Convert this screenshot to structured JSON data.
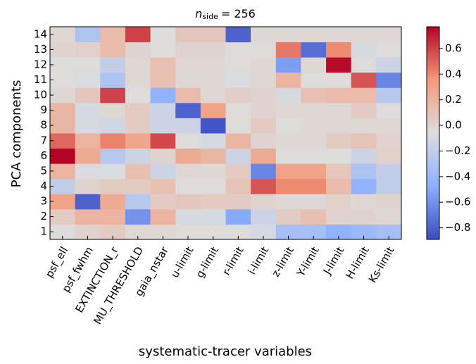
{
  "chart_data": {
    "type": "heatmap",
    "title": {
      "symbol": "n",
      "subscript": "side",
      "value": "= 256"
    },
    "x_label": "systematic-tracer variables",
    "y_label": "PCA components",
    "x_categories": [
      "psf_ell",
      "psf_fwhm",
      "EXTINCTION_r",
      "MU_THRESHOLD",
      "gaia_nstar",
      "u-limit",
      "g-limit",
      "r-limit",
      "i-limit",
      "z-limit",
      "Y-limit",
      "J-limit",
      "H-limit",
      "Ks-limit"
    ],
    "y_categories": [
      "1",
      "2",
      "3",
      "4",
      "5",
      "6",
      "7",
      "8",
      "9",
      "10",
      "11",
      "12",
      "13",
      "14"
    ],
    "z": [
      [
        -0.05,
        0.0,
        0.05,
        -0.02,
        -0.02,
        -0.05,
        -0.05,
        -0.05,
        -0.1,
        -0.35,
        -0.35,
        -0.45,
        -0.4,
        -0.35
      ],
      [
        0.05,
        0.2,
        0.2,
        -0.6,
        0.2,
        -0.1,
        -0.1,
        -0.5,
        -0.15,
        0.05,
        0.12,
        0.0,
        0.0,
        -0.02
      ],
      [
        0.3,
        -0.8,
        0.25,
        -0.25,
        0.05,
        0.08,
        0.05,
        0.05,
        0.0,
        -0.02,
        -0.02,
        0.02,
        -0.02,
        0.0
      ],
      [
        -0.2,
        0.0,
        0.05,
        0.05,
        0.12,
        -0.05,
        -0.05,
        0.1,
        0.55,
        0.4,
        0.4,
        0.15,
        -0.45,
        -0.2
      ],
      [
        0.2,
        -0.08,
        -0.08,
        0.12,
        -0.15,
        -0.02,
        -0.02,
        0.05,
        -0.65,
        0.3,
        0.3,
        0.08,
        -0.3,
        -0.2
      ],
      [
        0.77,
        0.25,
        -0.25,
        -0.15,
        0.0,
        0.25,
        0.18,
        -0.15,
        0.25,
        -0.05,
        -0.05,
        -0.05,
        -0.15,
        0.02
      ],
      [
        0.5,
        0.2,
        0.42,
        0.28,
        0.58,
        -0.05,
        -0.1,
        0.18,
        0.0,
        -0.02,
        -0.02,
        0.05,
        0.1,
        0.0
      ],
      [
        0.18,
        -0.1,
        -0.12,
        0.05,
        -0.15,
        -0.15,
        -0.85,
        -0.05,
        0.05,
        -0.05,
        -0.02,
        -0.02,
        -0.02,
        -0.02
      ],
      [
        0.18,
        -0.1,
        -0.02,
        0.05,
        -0.15,
        -0.8,
        0.3,
        -0.05,
        0.0,
        -0.02,
        -0.02,
        -0.02,
        0.05,
        -0.05
      ],
      [
        -0.02,
        0.08,
        0.6,
        -0.05,
        -0.45,
        0.15,
        -0.02,
        0.03,
        0.0,
        -0.1,
        0.12,
        0.15,
        0.15,
        -0.25
      ],
      [
        -0.05,
        -0.08,
        -0.3,
        -0.02,
        0.12,
        -0.02,
        -0.02,
        -0.08,
        -0.02,
        0.2,
        -0.05,
        -0.05,
        0.55,
        -0.65
      ],
      [
        -0.05,
        -0.05,
        -0.2,
        -0.02,
        0.12,
        -0.02,
        -0.02,
        -0.05,
        -0.02,
        -0.55,
        -0.02,
        0.75,
        -0.05,
        -0.15
      ],
      [
        0.0,
        0.02,
        0.15,
        0.0,
        -0.05,
        0.0,
        0.0,
        -0.05,
        -0.05,
        0.45,
        -0.75,
        0.4,
        -0.1,
        -0.05
      ],
      [
        -0.02,
        -0.3,
        0.15,
        0.6,
        -0.05,
        0.08,
        0.08,
        -0.8,
        -0.02,
        -0.02,
        -0.02,
        -0.02,
        -0.02,
        -0.02
      ]
    ],
    "colormap": "coolwarm",
    "clim": [
      -0.89,
      0.77
    ],
    "cticks": [
      {
        "value": -0.8,
        "label": "−0.8"
      },
      {
        "value": -0.6,
        "label": "−0.6"
      },
      {
        "value": -0.4,
        "label": "−0.4"
      },
      {
        "value": -0.2,
        "label": "−0.2"
      },
      {
        "value": 0.0,
        "label": "0.0"
      },
      0.2,
      0.4,
      0.6
    ]
  }
}
